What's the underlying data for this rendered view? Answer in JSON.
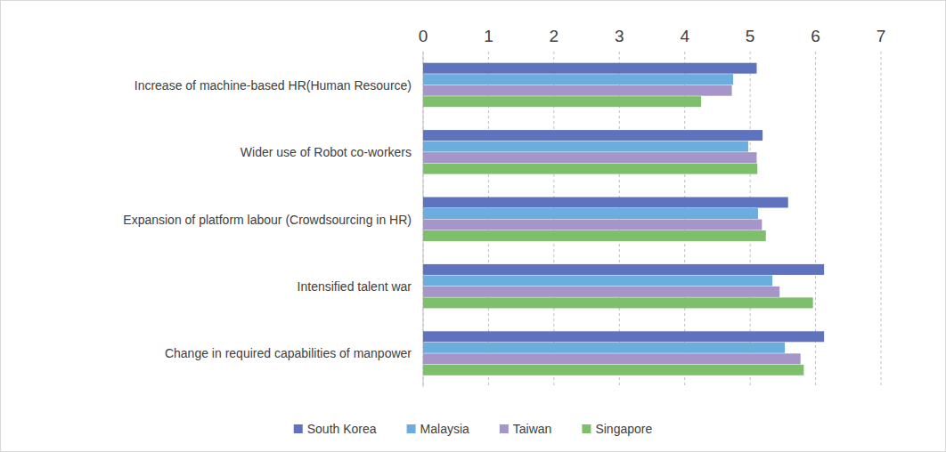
{
  "chart_data": {
    "type": "bar",
    "orientation": "horizontal",
    "categories": [
      "Increase of machine-based HR(Human Resource)",
      "Wider use of Robot co-workers",
      "Expansion of platform labour (Crowdsourcing in HR)",
      "Intensified talent war",
      "Change in required capabilities of manpower"
    ],
    "series": [
      {
        "name": "South Korea",
        "color": "#5e72bd",
        "values": [
          5.1,
          5.19,
          5.58,
          6.13,
          6.13
        ]
      },
      {
        "name": "Malaysia",
        "color": "#6baede",
        "values": [
          4.74,
          4.97,
          5.12,
          5.34,
          5.53
        ]
      },
      {
        "name": "Taiwan",
        "color": "#a695c8",
        "values": [
          4.72,
          5.1,
          5.18,
          5.45,
          5.77
        ]
      },
      {
        "name": "Singapore",
        "color": "#7dbf6a",
        "values": [
          4.25,
          5.11,
          5.24,
          5.96,
          5.82
        ]
      }
    ],
    "xlim": [
      0,
      7
    ],
    "xticks": [
      0,
      1,
      2,
      3,
      4,
      5,
      6,
      7
    ],
    "grid": true,
    "legend": "bottom"
  }
}
